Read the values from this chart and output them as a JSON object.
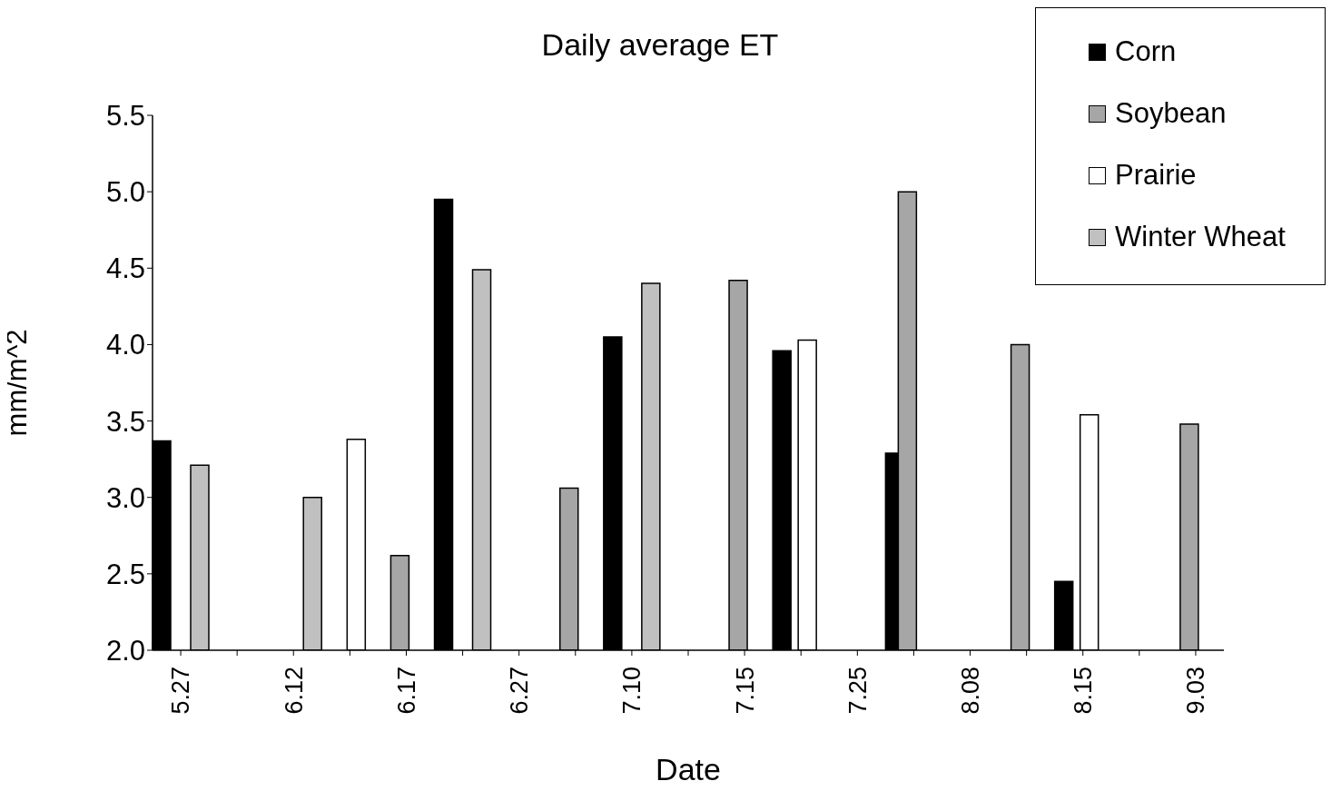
{
  "chart_data": {
    "type": "bar",
    "title": "Daily average ET",
    "xlabel": "Date",
    "ylabel": "mm/m^2",
    "categories": [
      "5.27",
      null,
      "6.12",
      null,
      "6.17",
      null,
      "6.27",
      null,
      "7.10",
      null,
      "7.15",
      null,
      "7.25",
      null,
      "8.08",
      null,
      "8.15",
      null,
      "9.03"
    ],
    "series": [
      {
        "name": "Corn",
        "color": "#000000",
        "values": [
          3.37,
          null,
          null,
          null,
          null,
          4.95,
          null,
          null,
          4.05,
          null,
          null,
          3.96,
          null,
          3.29,
          null,
          null,
          2.45,
          null,
          null
        ]
      },
      {
        "name": "Soybean",
        "color": "#a6a6a6",
        "values": [
          null,
          null,
          null,
          null,
          2.62,
          null,
          null,
          3.06,
          null,
          null,
          4.42,
          null,
          null,
          5.0,
          null,
          4.0,
          null,
          null,
          3.48
        ]
      },
      {
        "name": "Prairie",
        "color": "#ffffff",
        "values": [
          null,
          null,
          null,
          3.38,
          null,
          null,
          null,
          null,
          null,
          null,
          null,
          4.03,
          null,
          null,
          null,
          null,
          3.54,
          null,
          null
        ]
      },
      {
        "name": "Winter Wheat",
        "color": "#c0c0c0",
        "values": [
          3.21,
          null,
          3.0,
          null,
          null,
          4.49,
          null,
          null,
          4.4,
          null,
          null,
          null,
          null,
          null,
          null,
          null,
          null,
          null,
          null
        ]
      }
    ],
    "ylim": [
      2.0,
      5.5
    ],
    "yticks": [
      {
        "value": 2,
        "label": "2.0"
      },
      {
        "value": 2.5,
        "label": "2.5"
      },
      {
        "value": 3,
        "label": "3.0"
      },
      {
        "value": 3.5,
        "label": "3.5"
      },
      {
        "value": 4,
        "label": "4.0"
      },
      {
        "value": 4.5,
        "label": "4.5"
      },
      {
        "value": 5,
        "label": "5.0"
      },
      {
        "value": 5.5,
        "label": "5.5"
      }
    ],
    "grid": false,
    "legend": "top right"
  }
}
